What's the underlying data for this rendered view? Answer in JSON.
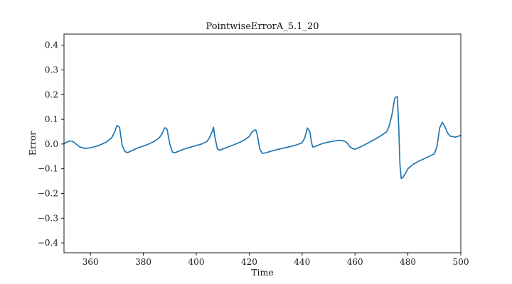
{
  "chart_data": {
    "type": "line",
    "title": "PointwiseErrorA_5.1_20",
    "xlabel": "Time",
    "ylabel": "Error",
    "xlim": [
      350,
      500
    ],
    "ylim": [
      -0.44,
      0.445
    ],
    "grid": false,
    "x_ticks": [
      360,
      380,
      400,
      420,
      440,
      460,
      480,
      500
    ],
    "y_ticks": [
      0.4,
      0.3,
      0.2,
      0.1,
      0.0,
      -0.1,
      -0.2,
      -0.3,
      -0.4
    ],
    "x_tick_labels": [
      "360",
      "380",
      "400",
      "420",
      "440",
      "460",
      "480",
      "500"
    ],
    "y_tick_labels": [
      "0.4",
      "0.3",
      "0.2",
      "0.1",
      "0.0",
      "−0.1",
      "−0.2",
      "−0.3",
      "−0.4"
    ],
    "colors": {
      "series": "#1f77b4",
      "axes": "#000000"
    },
    "series": [
      {
        "x": [
          350,
          352,
          353,
          354,
          356,
          358,
          360,
          362,
          364,
          366,
          368,
          369,
          370,
          371,
          371.5,
          372,
          373,
          374,
          376,
          378,
          380,
          382,
          384,
          386,
          387,
          388,
          388.5,
          389,
          390,
          391,
          392,
          394,
          396,
          398,
          400,
          402,
          404,
          405,
          406,
          406.5,
          407,
          408,
          409,
          410,
          412,
          414,
          416,
          418,
          420,
          421,
          422,
          422.5,
          423,
          424,
          425,
          426,
          428,
          430,
          432,
          434,
          436,
          438,
          440,
          441,
          442,
          443,
          443.5,
          444,
          445,
          446,
          448,
          450,
          452,
          454,
          456,
          457,
          458,
          459,
          460,
          462,
          464,
          466,
          468,
          470,
          472,
          473,
          474,
          475,
          475.5,
          476,
          476.5,
          477,
          477.5,
          478,
          479,
          480,
          482,
          484,
          486,
          488,
          490,
          491,
          492,
          493,
          494,
          495,
          496,
          498,
          500
        ],
        "y": [
          0.002,
          0.012,
          0.012,
          0.005,
          -0.012,
          -0.018,
          -0.015,
          -0.01,
          -0.002,
          0.008,
          0.025,
          0.045,
          0.075,
          0.068,
          0.03,
          -0.005,
          -0.03,
          -0.035,
          -0.025,
          -0.015,
          -0.008,
          0.0,
          0.01,
          0.025,
          0.04,
          0.065,
          0.065,
          0.058,
          0.0,
          -0.033,
          -0.035,
          -0.026,
          -0.018,
          -0.012,
          -0.006,
          0.0,
          0.01,
          0.025,
          0.05,
          0.068,
          0.03,
          -0.02,
          -0.025,
          -0.02,
          -0.012,
          -0.004,
          0.005,
          0.015,
          0.03,
          0.048,
          0.056,
          0.057,
          0.04,
          -0.02,
          -0.038,
          -0.036,
          -0.03,
          -0.024,
          -0.019,
          -0.014,
          -0.009,
          -0.003,
          0.005,
          0.025,
          0.065,
          0.048,
          0.01,
          -0.012,
          -0.01,
          -0.005,
          0.003,
          0.008,
          0.012,
          0.015,
          0.012,
          0.005,
          -0.01,
          -0.018,
          -0.021,
          -0.012,
          -0.001,
          0.01,
          0.022,
          0.035,
          0.05,
          0.075,
          0.12,
          0.185,
          0.19,
          0.192,
          0.08,
          -0.085,
          -0.14,
          -0.137,
          -0.12,
          -0.1,
          -0.082,
          -0.07,
          -0.06,
          -0.05,
          -0.04,
          -0.01,
          0.065,
          0.088,
          0.07,
          0.045,
          0.032,
          0.028,
          0.035
        ]
      }
    ]
  }
}
